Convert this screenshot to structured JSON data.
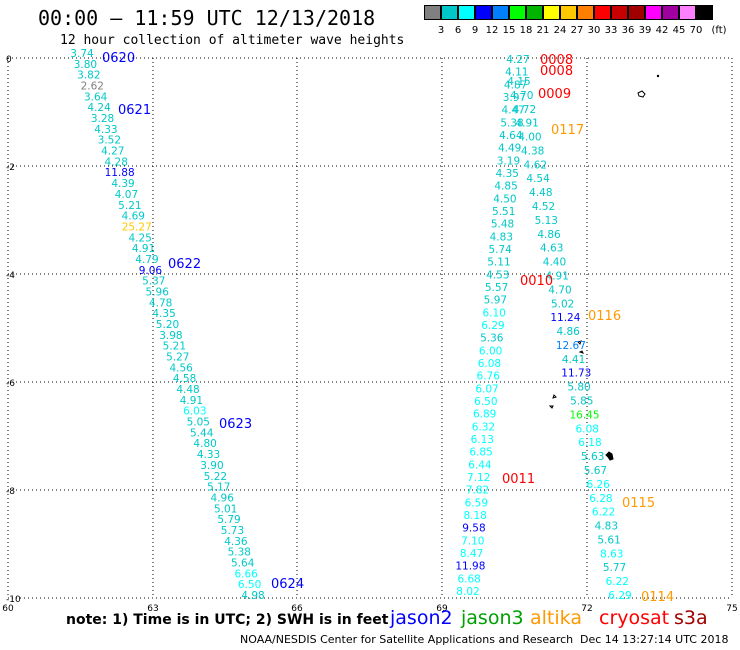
{
  "header": {
    "title": "00:00 – 11:59 UTC 12/13/2018",
    "subtitle": "12 hour collection of altimeter wave heights"
  },
  "colorbar": {
    "colors": [
      "#808080",
      "#00c8c8",
      "#00ffff",
      "#0000ff",
      "#0080ff",
      "#00ff00",
      "#00b400",
      "#ffff00",
      "#ffc800",
      "#ff8000",
      "#ff0000",
      "#c80000",
      "#a00000",
      "#ff00ff",
      "#a000a0",
      "#ff80ff",
      "#000000"
    ],
    "ticks": [
      "3",
      "6",
      "9",
      "12",
      "15",
      "18",
      "21",
      "24",
      "27",
      "30",
      "33",
      "36",
      "39",
      "42",
      "45",
      "70"
    ],
    "unit": "(ft)"
  },
  "map": {
    "y_ticks": [
      "0",
      "-2",
      "-4",
      "-6",
      "-8",
      "-10"
    ],
    "x_ticks": [
      "60",
      "63",
      "66",
      "69",
      "72",
      "75"
    ]
  },
  "footer": {
    "note": "note:  1) Time is in UTC;  2) SWH is in feet",
    "legend": [
      {
        "label": "jason2",
        "color": "#0000ff"
      },
      {
        "label": "jason3",
        "color": "#00a000"
      },
      {
        "label": "altika",
        "color": "#ff9900"
      },
      {
        "label": "cryosat",
        "color": "#ff0000"
      },
      {
        "label": "s3a",
        "color": "#a00000"
      }
    ],
    "credit": "NOAA/NESDIS Center for Satellite Applications and Research",
    "timestamp": "Dec 14 13:27:14 UTC 2018"
  },
  "passes": [
    {
      "label": "0620",
      "color": "#0000ff"
    },
    {
      "label": "0621",
      "color": "#0000ff"
    },
    {
      "label": "0622",
      "color": "#0000ff"
    },
    {
      "label": "0623",
      "color": "#0000ff"
    },
    {
      "label": "0624",
      "color": "#0000ff"
    },
    {
      "label": "0008",
      "color": "#ff0000"
    },
    {
      "label": "0008",
      "color": "#ff0000"
    },
    {
      "label": "0009",
      "color": "#ff0000"
    },
    {
      "label": "0117",
      "color": "#ff9900"
    },
    {
      "label": "0010",
      "color": "#ff0000"
    },
    {
      "label": "0116",
      "color": "#ff9900"
    },
    {
      "label": "0011",
      "color": "#ff0000"
    },
    {
      "label": "0115",
      "color": "#ff9900"
    },
    {
      "label": "0114",
      "color": "#ff9900"
    }
  ],
  "track_left": [
    "3.74",
    "3.80",
    "3.82",
    "2.62",
    "3.64",
    "4.24",
    "3.28",
    "4.33",
    "3.52",
    "4.27",
    "4.28",
    "11.88",
    "4.39",
    "4.07",
    "5.21",
    "4.69",
    "25.27",
    "4.25",
    "4.91",
    "4.79",
    "9.06",
    "5.37",
    "5.96",
    "4.78",
    "4.35",
    "5.20",
    "3.98",
    "5.21",
    "5.27",
    "4.56",
    "4.58",
    "4.48",
    "4.91",
    "6.03",
    "5.05",
    "5.44",
    "4.80",
    "4.33",
    "3.90",
    "5.22",
    "5.17",
    "4.96",
    "5.01",
    "5.79",
    "5.73",
    "4.36",
    "5.38",
    "5.64",
    "6.66",
    "6.50",
    "4.98"
  ],
  "track_mid": [
    "4.27",
    "4.11",
    "4.87",
    "3.97",
    "4.47",
    "5.38",
    "4.64",
    "4.49",
    "3.19",
    "4.35",
    "4.85",
    "4.50",
    "5.51",
    "5.48",
    "4.83",
    "5.74",
    "5.11",
    "4.53",
    "5.57",
    "5.97",
    "6.10",
    "6.29",
    "5.36",
    "6.00",
    "6.08",
    "6.76",
    "6.07",
    "6.50",
    "6.89",
    "6.32",
    "6.13",
    "6.85",
    "6.44",
    "7.12",
    "7.82",
    "6.59",
    "8.18",
    "9.58",
    "7.10",
    "8.47",
    "11.98",
    "6.68",
    "8.02"
  ],
  "track_right": [
    "4.15",
    "4.70",
    "4.72",
    "4.91",
    "4.00",
    "4.38",
    "4.62",
    "4.54",
    "4.48",
    "4.52",
    "5.13",
    "4.86",
    "4.63",
    "4.40",
    "4.91",
    "4.70",
    "5.02",
    "11.24",
    "4.86",
    "12.67",
    "4.41",
    "11.73",
    "5.80",
    "5.85",
    "16.45",
    "6.08",
    "6.18",
    "5.63",
    "5.67",
    "6.26",
    "6.28",
    "6.22",
    "4.83",
    "5.61",
    "8.63",
    "5.77",
    "6.22",
    "6.29"
  ]
}
